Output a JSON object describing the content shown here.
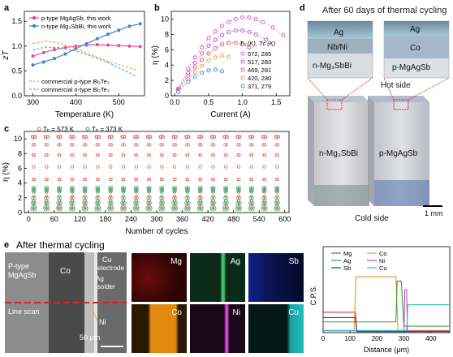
{
  "panels": {
    "a": {
      "label": "a",
      "ylabel": "zT",
      "xlabel": "Temperature (K)",
      "legend_top": [
        "p-type MgAgSb, this work",
        "n-type Mg₃SbBi, this work"
      ],
      "legend_bottom": [
        "commercial p-type Bi₂Te₃",
        "commercial n-type Bi₂Te₃"
      ],
      "xticks": [
        "300",
        "400",
        "500"
      ],
      "yticks": [
        "0.0",
        "0.5",
        "1.0",
        "1.5"
      ]
    },
    "b": {
      "label": "b",
      "ylabel": "η (%)",
      "xlabel": "Current (A)",
      "legend_header": "Tₕ (K), Tᴄ (K)",
      "legend": [
        "572, 285",
        "517, 283",
        "469, 281",
        "420, 280",
        "371, 279"
      ],
      "xticks": [
        "0.0",
        "0.5",
        "1.0",
        "1.5"
      ],
      "yticks": [
        "0",
        "2",
        "4",
        "6",
        "8",
        "10"
      ]
    },
    "c": {
      "label": "c",
      "ylabel": "η (%)",
      "xlabel": "Number of cycles",
      "legend": [
        "Tₕ = 573 K",
        "Tₕ = 373 K"
      ],
      "xticks": [
        "0",
        "60",
        "120",
        "180",
        "240",
        "300",
        "360",
        "420",
        "480",
        "540",
        "600"
      ],
      "yticks": [
        "0",
        "2",
        "4",
        "6",
        "8",
        "10"
      ]
    },
    "d": {
      "label": "d",
      "title": "After 60 days of thermal cycling",
      "inset_left": [
        "Ag",
        "Nb/Ni",
        "n-Mg₃SbBi"
      ],
      "inset_right": [
        "Ag",
        "Co",
        "p-MgAgSb"
      ],
      "hot_side": "Hot side",
      "cold_side": "Cold side",
      "leg_left": "n-Mg₃SbBi",
      "leg_right": "p-MgAgSb",
      "scale": "1 mm"
    },
    "e": {
      "label": "e",
      "title": "After thermal cycling",
      "sem_labels": [
        "P-type",
        "MgAgSb",
        "Co",
        "Cu",
        "electrode",
        "Ag",
        "solder",
        "Ni",
        "Line scan",
        "50 μm"
      ],
      "eds": [
        "Mg",
        "Ag",
        "Sb",
        "Co",
        "Ni",
        "Cu"
      ],
      "line_ylabel": "C.P.S.",
      "line_xlabel": "Distance (μm)",
      "line_legend": [
        "Mg",
        "Co",
        "Ag",
        "Ni",
        "Sb",
        "Cu"
      ],
      "line_xticks": [
        "0",
        "100",
        "200",
        "300",
        "400"
      ]
    }
  },
  "colors": {
    "pink": "#e8458f",
    "blue": "#3a7fd5",
    "orange": "#f0a050",
    "teal": "#3ec0b0",
    "b_series": [
      "#e85ad2",
      "#b55fd8",
      "#e85a70",
      "#f0a050",
      "#4a90e0"
    ],
    "c_hot": "#e85a5a",
    "c_cold": "#3aa86a",
    "line": {
      "Mg": "#e03030",
      "Co": "#f09020",
      "Ag": "#30a040",
      "Ni": "#d040d0",
      "Sb": "#2040c0",
      "Cu": "#30c0c0"
    }
  },
  "chart_data": [
    {
      "type": "line",
      "panel": "a",
      "xlabel": "Temperature (K)",
      "ylabel": "zT",
      "xlim": [
        280,
        560
      ],
      "ylim": [
        0,
        1.7
      ],
      "series": [
        {
          "name": "p-type MgAgSb, this work",
          "x": [
            300,
            325,
            350,
            375,
            400,
            425,
            450,
            475,
            500,
            525,
            550
          ],
          "values": [
            0.8,
            0.87,
            0.93,
            0.97,
            1.0,
            1.02,
            1.03,
            1.02,
            1.01,
            1.0,
            0.99
          ]
        },
        {
          "name": "n-type Mg₃SbBi, this work",
          "x": [
            300,
            325,
            350,
            375,
            400,
            425,
            450,
            475,
            500,
            525,
            550
          ],
          "values": [
            0.62,
            0.68,
            0.75,
            0.84,
            0.95,
            1.05,
            1.15,
            1.24,
            1.32,
            1.4,
            1.45
          ]
        },
        {
          "name": "commercial p-type Bi₂Te₃",
          "x": [
            300,
            330,
            360,
            390,
            420,
            450,
            480,
            510,
            540
          ],
          "values": [
            1.05,
            1.1,
            1.06,
            0.98,
            0.88,
            0.78,
            0.68,
            0.6,
            0.52
          ]
        },
        {
          "name": "commercial n-type Bi₂Te₃",
          "x": [
            300,
            330,
            360,
            390,
            420,
            450,
            480,
            510,
            540
          ],
          "values": [
            0.92,
            0.98,
            0.97,
            0.92,
            0.85,
            0.75,
            0.65,
            0.52,
            0.4
          ]
        }
      ]
    },
    {
      "type": "scatter",
      "panel": "b",
      "xlabel": "Current (A)",
      "ylabel": "η (%)",
      "xlim": [
        -0.05,
        1.7
      ],
      "ylim": [
        0,
        11
      ],
      "series": [
        {
          "name": "572, 285",
          "x": [
            0.05,
            0.2,
            0.3,
            0.4,
            0.5,
            0.6,
            0.7,
            0.8,
            0.9,
            1.0,
            1.1,
            1.2,
            1.3,
            1.45,
            1.6
          ],
          "values": [
            0.9,
            3.5,
            5.0,
            6.3,
            7.5,
            8.4,
            9.1,
            9.6,
            10.0,
            10.2,
            10.2,
            10.0,
            9.6,
            8.9,
            7.9
          ]
        },
        {
          "name": "517, 283",
          "x": [
            0.05,
            0.2,
            0.3,
            0.4,
            0.5,
            0.6,
            0.7,
            0.8,
            0.9,
            1.0,
            1.1,
            1.2,
            1.35
          ],
          "values": [
            0.8,
            3.0,
            4.3,
            5.5,
            6.5,
            7.3,
            7.9,
            8.3,
            8.5,
            8.5,
            8.3,
            8.0,
            7.3
          ]
        },
        {
          "name": "469, 281",
          "x": [
            0.05,
            0.2,
            0.3,
            0.4,
            0.5,
            0.6,
            0.7,
            0.8,
            0.9,
            1.0,
            1.1
          ],
          "values": [
            0.7,
            2.6,
            3.7,
            4.7,
            5.5,
            6.2,
            6.7,
            6.9,
            6.9,
            6.7,
            6.3
          ]
        },
        {
          "name": "420, 280",
          "x": [
            0.05,
            0.2,
            0.3,
            0.4,
            0.5,
            0.6,
            0.7,
            0.8
          ],
          "values": [
            0.6,
            2.2,
            3.1,
            3.9,
            4.6,
            5.0,
            5.2,
            5.1
          ]
        },
        {
          "name": "371, 279",
          "x": [
            0.05,
            0.2,
            0.3,
            0.4,
            0.5,
            0.6,
            0.7
          ],
          "values": [
            0.5,
            1.8,
            2.5,
            3.0,
            3.3,
            3.4,
            3.2
          ]
        }
      ]
    },
    {
      "type": "scatter",
      "panel": "c",
      "xlabel": "Number of cycles",
      "ylabel": "η (%)",
      "xlim": [
        -10,
        610
      ],
      "ylim": [
        0,
        11
      ],
      "cycles": 20,
      "period": 30,
      "series": [
        {
          "name": "Tₕ = 573 K",
          "values": [
            0.6,
            1.3,
            2.0,
            3.0,
            4.5,
            6.2,
            7.8,
            9.2,
            10.2,
            10.3
          ]
        },
        {
          "name": "Tₕ = 373 K",
          "values": [
            0.4,
            0.8,
            1.2,
            1.6,
            2.2,
            2.8,
            3.2,
            3.4
          ]
        }
      ]
    },
    {
      "type": "line",
      "panel": "e-linescan",
      "xlabel": "Distance (μm)",
      "ylabel": "C.P.S.",
      "xlim": [
        0,
        470
      ],
      "series": [
        {
          "name": "Mg",
          "x": [
            0,
            120,
            125,
            470
          ],
          "values": [
            0.95,
            0.95,
            0.08,
            0.08
          ]
        },
        {
          "name": "Co",
          "x": [
            0,
            115,
            122,
            270,
            278,
            470
          ],
          "values": [
            0.1,
            0.1,
            2.6,
            2.6,
            0.1,
            0.1
          ]
        },
        {
          "name": "Ag",
          "x": [
            0,
            270,
            275,
            290,
            300,
            470
          ],
          "values": [
            0.5,
            0.5,
            2.4,
            2.4,
            0.3,
            0.3
          ]
        },
        {
          "name": "Ni",
          "x": [
            0,
            300,
            303,
            310,
            313,
            470
          ],
          "values": [
            0.08,
            0.08,
            2.0,
            2.0,
            0.08,
            0.08
          ]
        },
        {
          "name": "Sb",
          "x": [
            0,
            120,
            125,
            470
          ],
          "values": [
            0.7,
            0.7,
            0.05,
            0.05
          ]
        },
        {
          "name": "Cu",
          "x": [
            0,
            310,
            315,
            470
          ],
          "values": [
            0.1,
            0.1,
            1.3,
            1.3
          ]
        }
      ]
    }
  ]
}
